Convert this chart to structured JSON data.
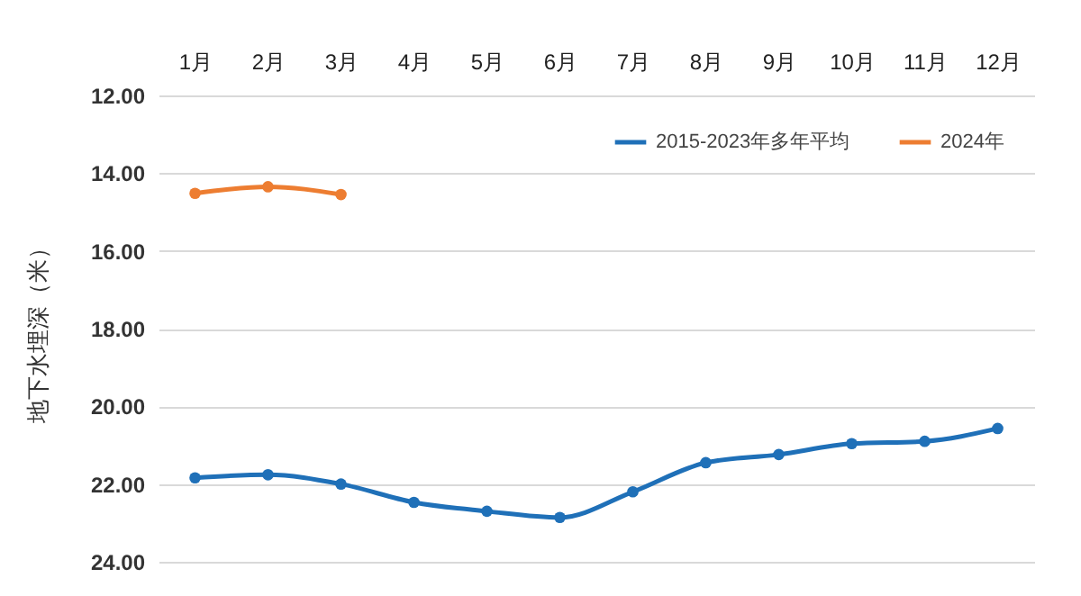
{
  "chart_data": {
    "type": "line",
    "ylabel": "地下水埋深（米）",
    "categories": [
      "1月",
      "2月",
      "3月",
      "4月",
      "5月",
      "6月",
      "7月",
      "8月",
      "9月",
      "10月",
      "11月",
      "12月"
    ],
    "series": [
      {
        "name": "2015-2023年多年平均",
        "color": "#1f70b8",
        "values": [
          21.84,
          21.76,
          22.0,
          22.47,
          22.7,
          22.86,
          22.2,
          21.45,
          21.24,
          20.96,
          20.9,
          20.57
        ]
      },
      {
        "name": "2024年",
        "color": "#ed7d31",
        "values": [
          14.52,
          14.35,
          14.55,
          null,
          null,
          null,
          null,
          null,
          null,
          null,
          null,
          null
        ]
      }
    ],
    "ylim": [
      24,
      12
    ],
    "yticks": [
      {
        "value": 12,
        "label": "12.00"
      },
      {
        "value": 14,
        "label": "14.00"
      },
      {
        "value": 16,
        "label": "16.00"
      },
      {
        "value": 18,
        "label": "18.00"
      },
      {
        "value": 20,
        "label": "20.00"
      },
      {
        "value": 22,
        "label": "22.00"
      },
      {
        "value": 24,
        "label": "24.00"
      }
    ],
    "grid": "y",
    "legend": "top right",
    "marker": "circle",
    "line_style": "solid"
  }
}
